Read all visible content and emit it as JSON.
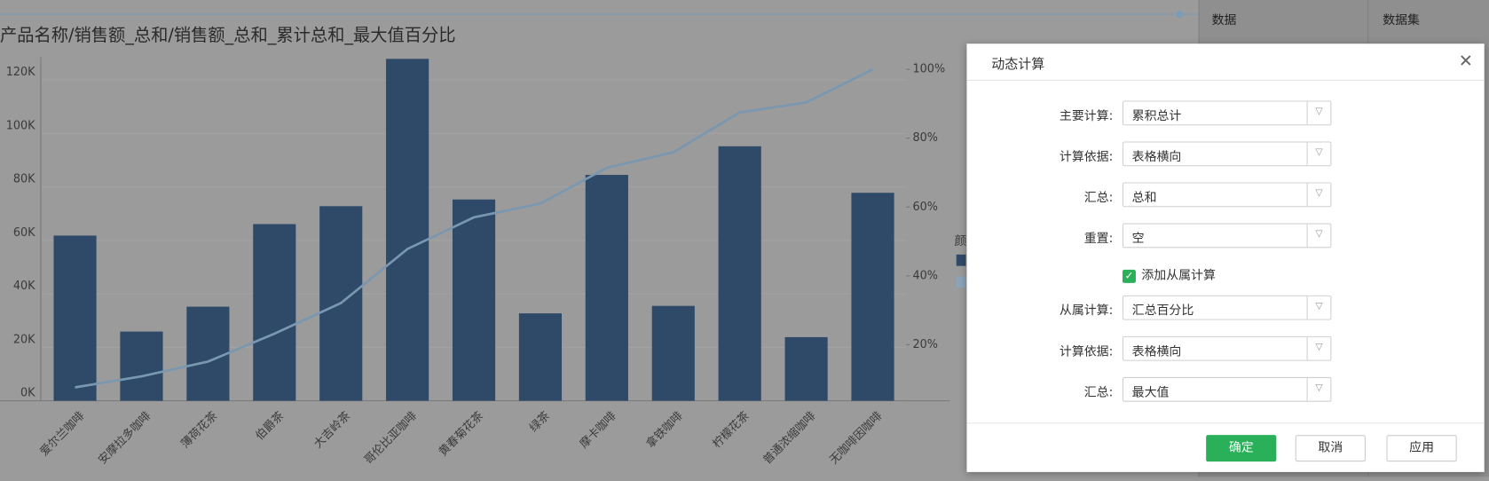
{
  "chart_data": {
    "type": "bar",
    "title": "产品名称/销售额_总和/销售额_总和_累计总和_最大值百分比",
    "categories": [
      "爱尔兰咖啡",
      "安摩拉多咖啡",
      "薄荷花茶",
      "伯爵茶",
      "大吉岭茶",
      "哥伦比亚咖啡",
      "黄春菊花茶",
      "绿茶",
      "摩卡咖啡",
      "拿铁咖啡",
      "柠檬花茶",
      "普通浓缩咖啡",
      "无咖啡因咖啡"
    ],
    "series": [
      {
        "type": "bar",
        "color": "#2f4a69",
        "values": [
          61800,
          25900,
          35200,
          66100,
          72800,
          127900,
          75300,
          32700,
          84500,
          35500,
          95200,
          23800,
          77800
        ]
      },
      {
        "type": "line",
        "axis": "y2",
        "color": "#7a97b0",
        "values": [
          7.6,
          10.8,
          15.1,
          23.2,
          32.1,
          47.8,
          57.0,
          61.0,
          71.4,
          75.9,
          87.5,
          90.4,
          100
        ]
      }
    ],
    "ylim": [
      0,
      128600
    ],
    "yticks": [
      {
        "value": 0,
        "label": "0K"
      },
      {
        "value": 20000,
        "label": "20K"
      },
      {
        "value": 40000,
        "label": "40K"
      },
      {
        "value": 60000,
        "label": "60K"
      },
      {
        "value": 80000,
        "label": "80K"
      },
      {
        "value": 100000,
        "label": "100K"
      },
      {
        "value": 120000,
        "label": "120K"
      }
    ],
    "y2lim": [
      3.7,
      103.6
    ],
    "y2ticks": [
      {
        "value": 20,
        "label": "20%"
      },
      {
        "value": 40,
        "label": "40%"
      },
      {
        "value": 60,
        "label": "60%"
      },
      {
        "value": 80,
        "label": "80%"
      },
      {
        "value": 100,
        "label": "100%"
      }
    ],
    "grid": true,
    "legend_title": "颜"
  },
  "panel": {
    "data_tab": "数据",
    "dataset_tab": "数据集"
  },
  "dialog": {
    "title": "动态计算",
    "rows": [
      {
        "label": "主要计算:",
        "value": "累积总计"
      },
      {
        "label": "计算依据:",
        "value": "表格横向"
      },
      {
        "label": "汇总:",
        "value": "总和"
      },
      {
        "label": "重置:",
        "value": "空"
      }
    ],
    "checkbox": "添加从属计算",
    "sub_rows": [
      {
        "label": "从属计算:",
        "value": "汇总百分比"
      },
      {
        "label": "计算依据:",
        "value": "表格横向"
      },
      {
        "label": "汇总:",
        "value": "最大值"
      }
    ],
    "buttons": [
      "确定",
      "取消",
      "应用"
    ]
  }
}
